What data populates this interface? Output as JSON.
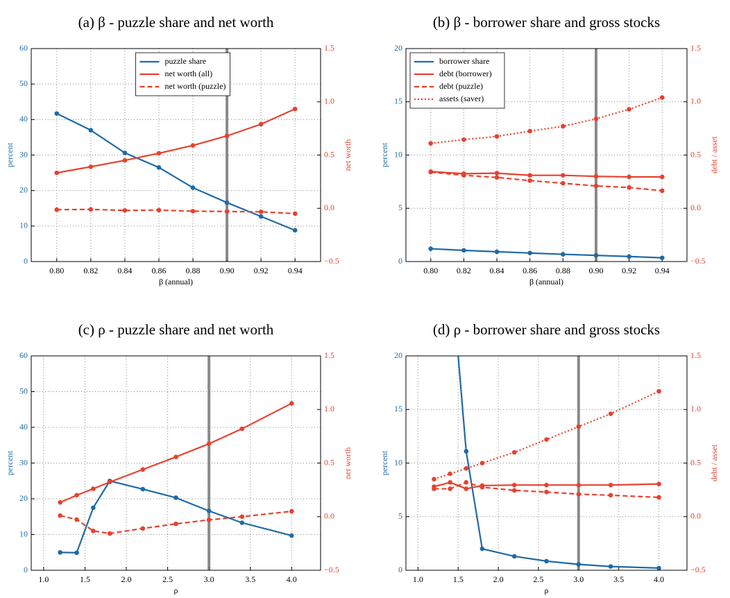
{
  "chart_data": [
    {
      "type": "line",
      "title": "(a) β - puzzle share and net worth",
      "xlabel": "β (annual)",
      "ylabel": "percent",
      "y2label": "net worth",
      "x": [
        0.8,
        0.82,
        0.84,
        0.86,
        0.88,
        0.9,
        0.92,
        0.94
      ],
      "xlim": [
        0.785,
        0.955
      ],
      "xticks": [
        {
          "value": 0.8,
          "label": "0.80"
        },
        0.82,
        0.84,
        0.86,
        0.88,
        {
          "value": 0.9,
          "label": "0.90"
        },
        0.92,
        0.94
      ],
      "ylim": [
        0,
        60
      ],
      "yticks": [
        0,
        10,
        20,
        30,
        40,
        50,
        60
      ],
      "y2lim": [
        -0.5,
        1.5
      ],
      "y2ticks": [
        {
          "value": -0.5,
          "label": "−0.5"
        },
        {
          "value": 0,
          "label": "0.0"
        },
        0.5,
        {
          "value": 1,
          "label": "1.0"
        },
        1.5
      ],
      "ycolor": "#1f6aa5",
      "y2color": "#e8412f",
      "grid": true,
      "vline": 0.9,
      "legend": "upper center",
      "series": [
        {
          "name": "puzzle share",
          "color": "#1f6aa5",
          "style": "solid",
          "values": [
            41.7,
            37.0,
            30.6,
            26.5,
            20.8,
            16.6,
            12.7,
            8.8
          ]
        },
        {
          "name": "net worth (all)",
          "color": "#e8412f",
          "style": "solid",
          "axis": "y2",
          "values": [
            0.333,
            0.39,
            0.45,
            0.517,
            0.59,
            0.68,
            0.79,
            0.933
          ]
        },
        {
          "name": "net worth (puzzle)",
          "color": "#e8412f",
          "style": "dashed",
          "axis": "y2",
          "values": [
            -0.013,
            -0.01,
            -0.02,
            -0.017,
            -0.027,
            -0.03,
            -0.033,
            -0.05
          ]
        }
      ]
    },
    {
      "type": "line",
      "title": "(b) β - borrower share and gross stocks",
      "xlabel": "β (annual)",
      "ylabel": "percent",
      "y2label": "debt / asset",
      "x": [
        0.8,
        0.82,
        0.84,
        0.86,
        0.88,
        0.9,
        0.92,
        0.94
      ],
      "xlim": [
        0.785,
        0.955
      ],
      "xticks": [
        {
          "value": 0.8,
          "label": "0.80"
        },
        0.82,
        0.84,
        0.86,
        0.88,
        {
          "value": 0.9,
          "label": "0.90"
        },
        0.92,
        0.94
      ],
      "ylim": [
        0,
        20
      ],
      "yticks": [
        0,
        5,
        10,
        15,
        20
      ],
      "y2lim": [
        -0.5,
        1.5
      ],
      "y2ticks": [
        {
          "value": -0.5,
          "label": "−0.5"
        },
        {
          "value": 0,
          "label": "0.0"
        },
        0.5,
        {
          "value": 1,
          "label": "1.0"
        },
        1.5
      ],
      "ycolor": "#1f6aa5",
      "y2color": "#e8412f",
      "grid": true,
      "vline": 0.9,
      "legend": "upper left",
      "series": [
        {
          "name": "borrower share",
          "color": "#1f6aa5",
          "style": "solid",
          "values": [
            1.2,
            1.05,
            0.92,
            0.8,
            0.68,
            0.58,
            0.47,
            0.35
          ]
        },
        {
          "name": "debt (borrower)",
          "color": "#e8412f",
          "style": "solid",
          "axis": "y2",
          "values": [
            0.345,
            0.325,
            0.33,
            0.31,
            0.31,
            0.3,
            0.295,
            0.295
          ]
        },
        {
          "name": "debt (puzzle)",
          "color": "#e8412f",
          "style": "dashed",
          "axis": "y2",
          "values": [
            0.34,
            0.31,
            0.29,
            0.26,
            0.235,
            0.21,
            0.195,
            0.165
          ]
        },
        {
          "name": "assets (saver)",
          "color": "#e8412f",
          "style": "dotted",
          "axis": "y2",
          "values": [
            0.61,
            0.645,
            0.675,
            0.725,
            0.77,
            0.84,
            0.93,
            1.04
          ]
        }
      ]
    },
    {
      "type": "line",
      "title": "(c) ρ - puzzle share and net worth",
      "xlabel": "ρ",
      "ylabel": "percent",
      "y2label": "net worth",
      "x": [
        1.2,
        1.4,
        1.6,
        1.8,
        2.2,
        2.6,
        3.0,
        3.4,
        4.0
      ],
      "xlim": [
        0.85,
        4.35
      ],
      "xticks": [
        {
          "value": 1,
          "label": "1.0"
        },
        1.5,
        {
          "value": 2,
          "label": "2.0"
        },
        2.5,
        {
          "value": 3,
          "label": "3.0"
        },
        3.5,
        {
          "value": 4,
          "label": "4.0"
        }
      ],
      "ylim": [
        0,
        60
      ],
      "yticks": [
        0,
        10,
        20,
        30,
        40,
        50,
        60
      ],
      "y2lim": [
        -0.5,
        1.5
      ],
      "y2ticks": [
        {
          "value": -0.5,
          "label": "−0.5"
        },
        {
          "value": 0,
          "label": "0.0"
        },
        0.5,
        {
          "value": 1,
          "label": "1.0"
        },
        1.5
      ],
      "ycolor": "#1f6aa5",
      "y2color": "#e8412f",
      "grid": true,
      "vline": 3.0,
      "series": [
        {
          "name": "puzzle share",
          "color": "#1f6aa5",
          "style": "solid",
          "values": [
            5.0,
            4.9,
            17.5,
            25.0,
            22.7,
            20.3,
            16.6,
            13.3,
            9.7
          ]
        },
        {
          "name": "net worth (all)",
          "color": "#e8412f",
          "style": "solid",
          "axis": "y2",
          "values": [
            0.133,
            0.2,
            0.26,
            0.323,
            0.44,
            0.557,
            0.68,
            0.82,
            1.057
          ]
        },
        {
          "name": "net worth (puzzle)",
          "color": "#e8412f",
          "style": "dashed",
          "axis": "y2",
          "values": [
            0.01,
            -0.027,
            -0.133,
            -0.157,
            -0.11,
            -0.067,
            -0.03,
            0.0,
            0.05
          ]
        }
      ]
    },
    {
      "type": "line",
      "title": "(d) ρ - borrower share and gross stocks",
      "xlabel": "ρ",
      "ylabel": "percent",
      "y2label": "debt / asset",
      "x": [
        1.2,
        1.4,
        1.6,
        1.8,
        2.2,
        2.6,
        3.0,
        3.4,
        4.0
      ],
      "xlim": [
        0.85,
        4.35
      ],
      "xticks": [
        {
          "value": 1,
          "label": "1.0"
        },
        1.5,
        {
          "value": 2,
          "label": "2.0"
        },
        2.5,
        {
          "value": 3,
          "label": "3.0"
        },
        3.5,
        {
          "value": 4,
          "label": "4.0"
        }
      ],
      "ylim": [
        0,
        20
      ],
      "yticks": [
        0,
        5,
        10,
        15,
        20
      ],
      "y2lim": [
        -0.5,
        1.5
      ],
      "y2ticks": [
        {
          "value": -0.5,
          "label": "−0.5"
        },
        {
          "value": 0,
          "label": "0.0"
        },
        0.5,
        {
          "value": 1,
          "label": "1.0"
        },
        1.5
      ],
      "ycolor": "#1f6aa5",
      "y2color": "#e8412f",
      "grid": true,
      "vline": 3.0,
      "series": [
        {
          "name": "borrower share",
          "color": "#1f6aa5",
          "style": "solid",
          "values": [
            null,
            29,
            11.1,
            2.0,
            1.3,
            0.85,
            0.55,
            0.35,
            0.2
          ]
        },
        {
          "name": "debt (borrower)",
          "color": "#e8412f",
          "style": "solid",
          "axis": "y2",
          "values": [
            0.28,
            0.32,
            0.26,
            0.29,
            0.295,
            0.295,
            0.295,
            0.295,
            0.305
          ]
        },
        {
          "name": "debt (puzzle)",
          "color": "#e8412f",
          "style": "dashed",
          "axis": "y2",
          "values": [
            0.26,
            0.26,
            0.32,
            0.275,
            0.245,
            0.23,
            0.21,
            0.2,
            0.18
          ]
        },
        {
          "name": "assets (saver)",
          "color": "#e8412f",
          "style": "dotted",
          "axis": "y2",
          "values": [
            0.35,
            0.4,
            0.45,
            0.5,
            0.6,
            0.72,
            0.84,
            0.96,
            1.17
          ]
        }
      ]
    }
  ]
}
